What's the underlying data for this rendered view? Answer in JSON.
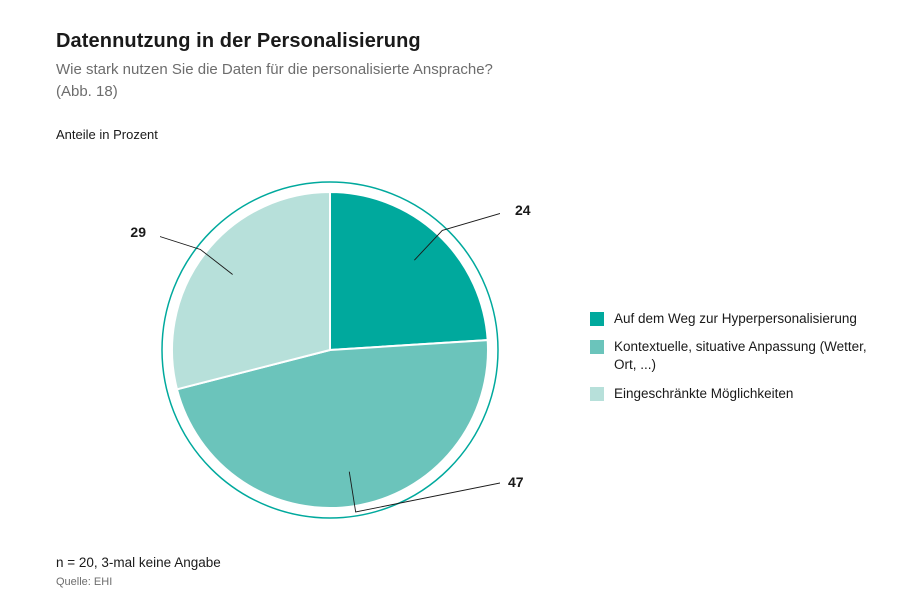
{
  "header": {
    "title": "Datennutzung in der Personalisierung",
    "subtitle_line1": "Wie stark nutzen Sie die Daten für die personalisierte Ansprache?",
    "subtitle_line2": "(Abb. 18)",
    "unit_label": "Anteile in Prozent"
  },
  "chart": {
    "type": "pie",
    "background_color": "#ffffff",
    "outer_ring_color": "#00a99d",
    "outer_ring_width": 1.5,
    "slice_gap_color": "#ffffff",
    "slice_gap_width": 2,
    "leader_line_color": "#1a1a1a",
    "leader_line_width": 0.9,
    "label_font_weight": 700,
    "label_font_size": 14,
    "slices": [
      {
        "label": "Auf dem Weg zur Hyperpersonalisierung",
        "value": 24,
        "color": "#00a99d"
      },
      {
        "label": "Kontextuelle, situative Anpassung (Wetter, Ort, ...)",
        "value": 47,
        "color": "#6bc4bb"
      },
      {
        "label": "Eingeschränkte Möglichkeiten",
        "value": 29,
        "color": "#b7e0da"
      }
    ],
    "value_labels": {
      "s0": "24",
      "s1": "47",
      "s2": "29"
    }
  },
  "legend": {
    "items": [
      {
        "label": "Auf dem Weg zur Hyperpersonalisierung",
        "color": "#00a99d"
      },
      {
        "label": "Kontextuelle, situative Anpassung (Wetter, Ort, ...)",
        "color": "#6bc4bb"
      },
      {
        "label": "Eingeschränkte Möglichkeiten",
        "color": "#b7e0da"
      }
    ]
  },
  "footer": {
    "note": "n = 20, 3-mal keine Angabe",
    "source": "Quelle: EHI"
  }
}
